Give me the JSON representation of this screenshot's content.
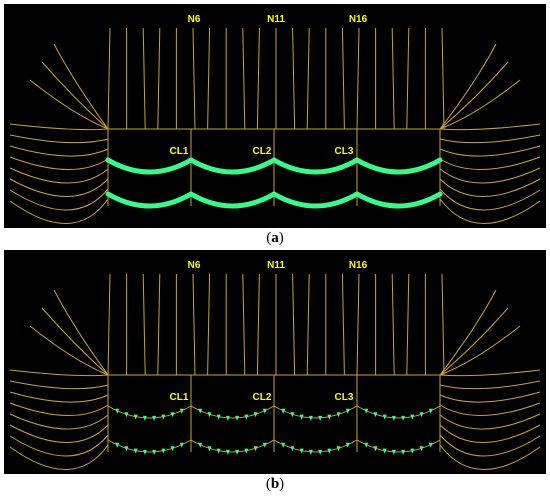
{
  "panels": [
    {
      "id": "a",
      "caption_open": "(",
      "caption_letter": "a",
      "caption_close": ")",
      "node_labels": [
        "N6",
        "N11",
        "N16"
      ],
      "cable_labels": [
        "CL1",
        "CL2",
        "CL3"
      ],
      "cable_render": "continuous"
    },
    {
      "id": "b",
      "caption_open": "(",
      "caption_letter": "b",
      "caption_close": ")",
      "node_labels": [
        "N6",
        "N11",
        "N16"
      ],
      "cable_labels": [
        "CL1",
        "CL2",
        "CL3"
      ],
      "cable_render": "markers"
    }
  ],
  "colors": {
    "background": "#000000",
    "net_lines": "#c9a227",
    "labels": "#ffff00",
    "cables": "#33ff88"
  }
}
